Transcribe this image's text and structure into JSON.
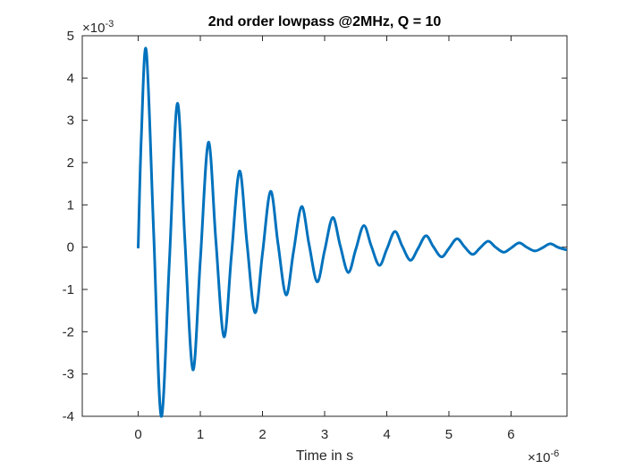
{
  "chart_data": {
    "type": "line",
    "title": "2nd order lowpass @2MHz, Q = 10",
    "xlabel": "Time in s",
    "ylabel": "",
    "x_exponent_label": "×10",
    "x_exponent_power": "-6",
    "y_exponent_label": "×10",
    "y_exponent_power": "-3",
    "xlim": [
      -0.9,
      6.9
    ],
    "ylim": [
      -4,
      5
    ],
    "x_ticks": [
      0,
      1,
      2,
      3,
      4,
      5,
      6
    ],
    "x_tick_labels": [
      "0",
      "1",
      "2",
      "3",
      "4",
      "5",
      "6"
    ],
    "y_ticks": [
      -4,
      -3,
      -2,
      -1,
      0,
      1,
      2,
      3,
      4,
      5
    ],
    "y_tick_labels": [
      "-4",
      "-3",
      "-2",
      "-1",
      "0",
      "1",
      "2",
      "3",
      "4",
      "5"
    ],
    "grid": true,
    "line_color": "#0072bd",
    "series": [
      {
        "x": [
          0,
          0.05,
          0.13,
          0.25,
          0.37,
          0.5,
          0.63,
          0.75,
          0.88,
          1.0,
          1.13,
          1.25,
          1.38,
          1.5,
          1.63,
          1.75,
          1.88,
          2.0,
          2.13,
          2.25,
          2.38,
          2.5,
          2.63,
          2.75,
          2.88,
          3.0,
          3.13,
          3.25,
          3.38,
          3.5,
          3.63,
          3.75,
          3.88,
          4.0,
          4.13,
          4.25,
          4.38,
          4.5,
          4.63,
          4.75,
          4.88,
          5.0,
          5.13,
          5.25,
          5.38,
          5.5,
          5.63,
          5.75,
          5.88,
          6.0,
          6.13,
          6.25,
          6.38,
          6.5,
          6.63,
          6.75,
          6.88
        ],
        "y": [
          0,
          2.6,
          4.65,
          0.3,
          -4.0,
          -0.4,
          3.4,
          0.2,
          -2.9,
          -0.3,
          2.48,
          0.15,
          -2.12,
          -0.2,
          1.8,
          0.1,
          -1.55,
          -0.15,
          1.32,
          0.08,
          -1.13,
          -0.1,
          0.96,
          0.06,
          -0.82,
          -0.08,
          0.7,
          0.04,
          -0.6,
          -0.06,
          0.51,
          0.03,
          -0.43,
          -0.05,
          0.37,
          0.02,
          -0.31,
          -0.04,
          0.27,
          0.01,
          -0.23,
          -0.03,
          0.2,
          0.01,
          -0.17,
          -0.02,
          0.14,
          0.0,
          -0.12,
          -0.02,
          0.1,
          0.0,
          -0.09,
          -0.02,
          0.08,
          0.0,
          -0.06
        ]
      }
    ]
  }
}
